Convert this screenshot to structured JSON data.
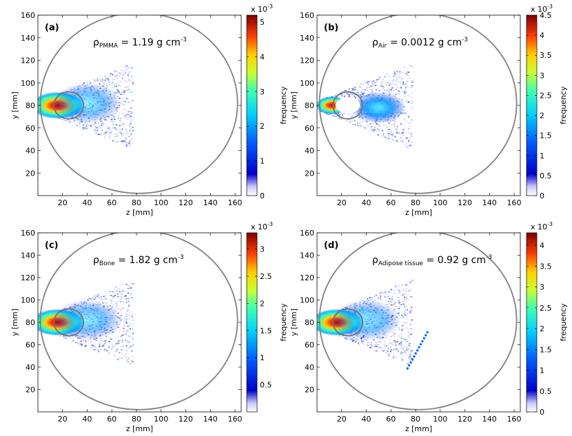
{
  "chart_data": [
    {
      "type": "heatmap",
      "panel_label": "(a)",
      "material_symbol": "ρ",
      "material_sub": "PMMA",
      "density_text": " = 1.19 g cm",
      "density_exp": "-3",
      "density_value": 1.19,
      "density_unit": "g cm^-3",
      "xlabel": "z [mm]",
      "ylabel": "y [mm]",
      "xlim": [
        0,
        165
      ],
      "ylim": [
        0,
        160
      ],
      "xticks": [
        20,
        40,
        60,
        80,
        100,
        120,
        140,
        160
      ],
      "yticks": [
        20,
        40,
        60,
        80,
        100,
        120,
        140,
        160
      ],
      "colorbar": {
        "label": "frequency",
        "multiplier": "x 10",
        "multiplier_exp": "-3",
        "range": [
          0,
          5.2
        ],
        "ticks": [
          0,
          1,
          2,
          3,
          4,
          5
        ]
      },
      "insert_circle": {
        "center": [
          25,
          80
        ],
        "radius": 12
      },
      "phantom_circle": {
        "center": [
          82,
          82
        ],
        "radius": 80
      }
    },
    {
      "type": "heatmap",
      "panel_label": "(b)",
      "material_symbol": "ρ",
      "material_sub": "Air",
      "density_text": " = 0.0012 g cm",
      "density_exp": "-3",
      "density_value": 0.0012,
      "density_unit": "g cm^-3",
      "xlabel": "z [mm]",
      "ylabel": "y [mm]",
      "xlim": [
        0,
        165
      ],
      "ylim": [
        0,
        160
      ],
      "xticks": [
        20,
        40,
        60,
        80,
        100,
        120,
        140,
        160
      ],
      "yticks": [
        20,
        40,
        60,
        80,
        100,
        120,
        140,
        160
      ],
      "colorbar": {
        "label": "frequency",
        "multiplier": "x 10",
        "multiplier_exp": "-3",
        "range": [
          0,
          4.5
        ],
        "ticks": [
          0,
          0.5,
          1,
          1.5,
          2,
          2.5,
          3,
          3.5,
          4,
          4.5
        ]
      },
      "insert_circle": {
        "center": [
          25,
          80
        ],
        "radius": 12
      },
      "phantom_circle": {
        "center": [
          82,
          82
        ],
        "radius": 80
      }
    },
    {
      "type": "heatmap",
      "panel_label": "(c)",
      "material_symbol": "ρ",
      "material_sub": "Bone",
      "density_text": " = 1.82 g cm",
      "density_exp": "-3",
      "density_value": 1.82,
      "density_unit": "g cm^-3",
      "xlabel": "z [mm]",
      "ylabel": "y [mm]",
      "xlim": [
        0,
        165
      ],
      "ylim": [
        0,
        160
      ],
      "xticks": [
        20,
        40,
        60,
        80,
        100,
        120,
        140,
        160
      ],
      "yticks": [
        20,
        40,
        60,
        80,
        100,
        120,
        140,
        160
      ],
      "colorbar": {
        "label": "frequency",
        "multiplier": "x 10",
        "multiplier_exp": "-3",
        "range": [
          0,
          3.3
        ],
        "ticks": [
          0.5,
          1,
          1.5,
          2,
          2.5,
          3
        ]
      },
      "insert_circle": {
        "center": [
          25,
          80
        ],
        "radius": 12
      },
      "phantom_circle": {
        "center": [
          82,
          82
        ],
        "radius": 80
      }
    },
    {
      "type": "heatmap",
      "panel_label": "(d)",
      "material_symbol": "ρ",
      "material_sub": "Adipose tissue",
      "density_text": " = 0.92 g cm",
      "density_exp": "-3",
      "density_value": 0.92,
      "density_unit": "g cm^-3",
      "xlabel": "z [mm]",
      "ylabel": "y [mm]",
      "xlim": [
        0,
        165
      ],
      "ylim": [
        0,
        160
      ],
      "xticks": [
        20,
        40,
        60,
        80,
        100,
        120,
        140,
        160
      ],
      "yticks": [
        20,
        40,
        60,
        80,
        100,
        120,
        140,
        160
      ],
      "colorbar": {
        "label": "frequency",
        "multiplier": "x 10",
        "multiplier_exp": "-3",
        "range": [
          0,
          4.3
        ],
        "ticks": [
          0,
          0.5,
          1,
          1.5,
          2,
          2.5,
          3,
          3.5,
          4
        ]
      },
      "insert_circle": {
        "center": [
          25,
          80
        ],
        "radius": 12
      },
      "phantom_circle": {
        "center": [
          82,
          82
        ],
        "radius": 80
      },
      "streak_feature": {
        "from": [
          73,
          38
        ],
        "to": [
          90,
          72
        ]
      }
    }
  ]
}
